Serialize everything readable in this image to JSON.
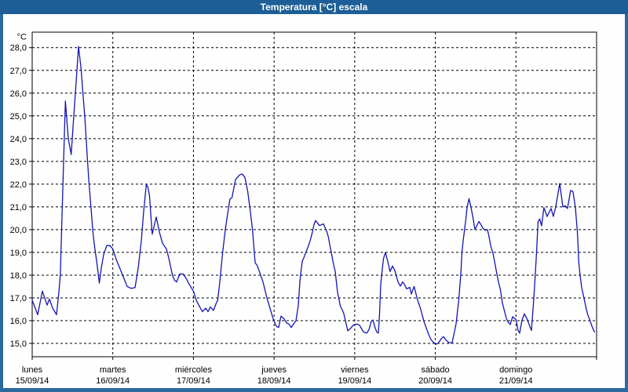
{
  "window": {
    "title": "Temperatura [°C] escala"
  },
  "colors": {
    "titlebar": "#1d5e96",
    "window_border": "#2a6a9f",
    "plot_background": "#fdfefd",
    "line": "#1515b5",
    "grid": "#000000",
    "text": "#000000"
  },
  "chart_data": {
    "type": "line",
    "title": "Temperatura [°C] escala",
    "ylabel": "°C",
    "ylim": [
      15,
      28
    ],
    "y_tick_step": 1.0,
    "y_tick_labels": [
      "15,0",
      "16,0",
      "17,0",
      "18,0",
      "19,0",
      "20,0",
      "21,0",
      "22,0",
      "23,0",
      "24,0",
      "25,0",
      "26,0",
      "27,0",
      "28,0"
    ],
    "grid": "dashed",
    "x_axis_days": [
      {
        "name": "lunes",
        "date": "15/09/14"
      },
      {
        "name": "martes",
        "date": "16/09/14"
      },
      {
        "name": "miércoles",
        "date": "17/09/14"
      },
      {
        "name": "jueves",
        "date": "18/09/14"
      },
      {
        "name": "viernes",
        "date": "19/09/14"
      },
      {
        "name": "sábado",
        "date": "20/09/14"
      },
      {
        "name": "domingo",
        "date": "21/09/14"
      }
    ],
    "series": [
      {
        "name": "Temperatura",
        "x_unit": "days_from_monday_00h",
        "points": [
          [
            0.0,
            16.9
          ],
          [
            0.068,
            16.26
          ],
          [
            0.127,
            17.3
          ],
          [
            0.185,
            16.68
          ],
          [
            0.214,
            16.95
          ],
          [
            0.253,
            16.55
          ],
          [
            0.302,
            16.26
          ],
          [
            0.331,
            17.25
          ],
          [
            0.35,
            18.05
          ],
          [
            0.37,
            20.6
          ],
          [
            0.39,
            23.1
          ],
          [
            0.412,
            25.65
          ],
          [
            0.448,
            24.0
          ],
          [
            0.484,
            23.3
          ],
          [
            0.506,
            24.5
          ],
          [
            0.535,
            26.0
          ],
          [
            0.555,
            27.0
          ],
          [
            0.574,
            28.05
          ],
          [
            0.607,
            27.07
          ],
          [
            0.623,
            26.27
          ],
          [
            0.655,
            24.84
          ],
          [
            0.682,
            23.23
          ],
          [
            0.704,
            22.08
          ],
          [
            0.73,
            20.93
          ],
          [
            0.753,
            19.9
          ],
          [
            0.776,
            19.2
          ],
          [
            0.801,
            18.57
          ],
          [
            0.832,
            17.65
          ],
          [
            0.857,
            18.3
          ],
          [
            0.886,
            18.9
          ],
          [
            0.925,
            19.3
          ],
          [
            0.964,
            19.3
          ],
          [
            1.0,
            19.15
          ],
          [
            1.042,
            18.7
          ],
          [
            1.11,
            18.1
          ],
          [
            1.178,
            17.5
          ],
          [
            1.227,
            17.42
          ],
          [
            1.275,
            17.45
          ],
          [
            1.314,
            18.3
          ],
          [
            1.353,
            19.5
          ],
          [
            1.382,
            20.8
          ],
          [
            1.416,
            22.0
          ],
          [
            1.436,
            21.85
          ],
          [
            1.455,
            21.5
          ],
          [
            1.489,
            19.8
          ],
          [
            1.538,
            20.55
          ],
          [
            1.577,
            19.9
          ],
          [
            1.616,
            19.4
          ],
          [
            1.665,
            19.15
          ],
          [
            1.694,
            18.75
          ],
          [
            1.743,
            17.95
          ],
          [
            1.767,
            17.77
          ],
          [
            1.791,
            17.7
          ],
          [
            1.83,
            18.05
          ],
          [
            1.874,
            18.05
          ],
          [
            1.918,
            17.8
          ],
          [
            1.947,
            17.6
          ],
          [
            2.0,
            17.3
          ],
          [
            2.035,
            16.9
          ],
          [
            2.084,
            16.56
          ],
          [
            2.113,
            16.4
          ],
          [
            2.152,
            16.55
          ],
          [
            2.181,
            16.4
          ],
          [
            2.21,
            16.6
          ],
          [
            2.249,
            16.45
          ],
          [
            2.283,
            16.77
          ],
          [
            2.302,
            16.9
          ],
          [
            2.327,
            17.7
          ],
          [
            2.361,
            18.95
          ],
          [
            2.395,
            20.0
          ],
          [
            2.424,
            20.7
          ],
          [
            2.453,
            21.35
          ],
          [
            2.478,
            21.4
          ],
          [
            2.522,
            22.2
          ],
          [
            2.57,
            22.4
          ],
          [
            2.604,
            22.45
          ],
          [
            2.638,
            22.3
          ],
          [
            2.672,
            21.7
          ],
          [
            2.702,
            20.9
          ],
          [
            2.731,
            20.05
          ],
          [
            2.765,
            18.55
          ],
          [
            2.794,
            18.4
          ],
          [
            2.833,
            18.0
          ],
          [
            2.862,
            17.7
          ],
          [
            2.911,
            17.0
          ],
          [
            2.94,
            16.65
          ],
          [
            2.989,
            16.08
          ],
          [
            3.028,
            15.75
          ],
          [
            3.057,
            15.7
          ],
          [
            3.086,
            16.2
          ],
          [
            3.125,
            16.07
          ],
          [
            3.154,
            15.9
          ],
          [
            3.184,
            15.85
          ],
          [
            3.213,
            15.7
          ],
          [
            3.242,
            15.85
          ],
          [
            3.271,
            16.0
          ],
          [
            3.3,
            16.66
          ],
          [
            3.32,
            17.7
          ],
          [
            3.334,
            18.15
          ],
          [
            3.349,
            18.6
          ],
          [
            3.368,
            18.75
          ],
          [
            3.383,
            18.9
          ],
          [
            3.417,
            19.2
          ],
          [
            3.446,
            19.5
          ],
          [
            3.476,
            19.9
          ],
          [
            3.495,
            20.22
          ],
          [
            3.515,
            20.4
          ],
          [
            3.563,
            20.18
          ],
          [
            3.612,
            20.25
          ],
          [
            3.656,
            19.9
          ],
          [
            3.675,
            19.65
          ],
          [
            3.69,
            19.35
          ],
          [
            3.709,
            19.0
          ],
          [
            3.739,
            18.45
          ],
          [
            3.758,
            18.17
          ],
          [
            3.773,
            17.7
          ],
          [
            3.787,
            17.25
          ],
          [
            3.821,
            16.65
          ],
          [
            3.851,
            16.43
          ],
          [
            3.865,
            16.3
          ],
          [
            3.914,
            15.55
          ],
          [
            3.953,
            15.68
          ],
          [
            3.982,
            15.8
          ],
          [
            4.031,
            15.85
          ],
          [
            4.06,
            15.8
          ],
          [
            4.109,
            15.5
          ],
          [
            4.148,
            15.45
          ],
          [
            4.177,
            15.6
          ],
          [
            4.206,
            15.97
          ],
          [
            4.225,
            16.03
          ],
          [
            4.254,
            15.68
          ],
          [
            4.274,
            15.5
          ],
          [
            4.293,
            15.45
          ],
          [
            4.308,
            16.3
          ],
          [
            4.323,
            17.6
          ],
          [
            4.342,
            18.27
          ],
          [
            4.357,
            18.73
          ],
          [
            4.381,
            19.0
          ],
          [
            4.42,
            18.45
          ],
          [
            4.439,
            18.16
          ],
          [
            4.469,
            18.4
          ],
          [
            4.498,
            18.2
          ],
          [
            4.537,
            17.7
          ],
          [
            4.566,
            17.52
          ],
          [
            4.595,
            17.7
          ],
          [
            4.615,
            17.6
          ],
          [
            4.644,
            17.4
          ],
          [
            4.683,
            17.46
          ],
          [
            4.702,
            17.17
          ],
          [
            4.736,
            17.5
          ],
          [
            4.78,
            16.9
          ],
          [
            4.819,
            16.5
          ],
          [
            4.858,
            15.97
          ],
          [
            4.887,
            15.68
          ],
          [
            4.917,
            15.4
          ],
          [
            4.946,
            15.17
          ],
          [
            4.975,
            15.05
          ],
          [
            5.014,
            14.97
          ],
          [
            5.033,
            15.0
          ],
          [
            5.072,
            15.2
          ],
          [
            5.101,
            15.3
          ],
          [
            5.131,
            15.15
          ],
          [
            5.17,
            15.03
          ],
          [
            5.209,
            15.03
          ],
          [
            5.257,
            15.86
          ],
          [
            5.291,
            16.94
          ],
          [
            5.316,
            18.04
          ],
          [
            5.33,
            19.0
          ],
          [
            5.345,
            19.5
          ],
          [
            5.364,
            20.06
          ],
          [
            5.379,
            20.47
          ],
          [
            5.394,
            20.97
          ],
          [
            5.418,
            21.36
          ],
          [
            5.442,
            20.97
          ],
          [
            5.462,
            20.63
          ],
          [
            5.491,
            20.0
          ],
          [
            5.54,
            20.36
          ],
          [
            5.569,
            20.2
          ],
          [
            5.588,
            20.07
          ],
          [
            5.618,
            19.97
          ],
          [
            5.647,
            20.0
          ],
          [
            5.671,
            19.6
          ],
          [
            5.686,
            19.3
          ],
          [
            5.715,
            18.97
          ],
          [
            5.734,
            18.6
          ],
          [
            5.764,
            18.04
          ],
          [
            5.783,
            17.7
          ],
          [
            5.807,
            17.35
          ],
          [
            5.832,
            16.78
          ],
          [
            5.861,
            16.37
          ],
          [
            5.88,
            16.1
          ],
          [
            5.9,
            15.95
          ],
          [
            5.929,
            15.83
          ],
          [
            5.958,
            16.17
          ],
          [
            6.0,
            16.05
          ],
          [
            6.026,
            15.57
          ],
          [
            6.046,
            15.45
          ],
          [
            6.075,
            16.03
          ],
          [
            6.104,
            16.3
          ],
          [
            6.143,
            16.03
          ],
          [
            6.172,
            15.73
          ],
          [
            6.192,
            15.57
          ],
          [
            6.221,
            16.97
          ],
          [
            6.24,
            18.04
          ],
          [
            6.255,
            19.0
          ],
          [
            6.274,
            20.35
          ],
          [
            6.294,
            20.47
          ],
          [
            6.318,
            20.17
          ],
          [
            6.347,
            20.97
          ],
          [
            6.386,
            20.58
          ],
          [
            6.416,
            20.8
          ],
          [
            6.435,
            20.93
          ],
          [
            6.464,
            20.58
          ],
          [
            6.493,
            21.0
          ],
          [
            6.542,
            22.03
          ],
          [
            6.581,
            21.0
          ],
          [
            6.61,
            21.05
          ],
          [
            6.639,
            20.93
          ],
          [
            6.678,
            21.72
          ],
          [
            6.707,
            21.67
          ],
          [
            6.736,
            21.0
          ],
          [
            6.761,
            19.9
          ],
          [
            6.78,
            18.5
          ],
          [
            6.795,
            18.04
          ],
          [
            6.814,
            17.46
          ],
          [
            6.843,
            17.0
          ],
          [
            6.863,
            16.66
          ],
          [
            6.887,
            16.3
          ],
          [
            6.921,
            15.97
          ],
          [
            6.95,
            15.68
          ],
          [
            6.975,
            15.5
          ]
        ]
      }
    ]
  }
}
